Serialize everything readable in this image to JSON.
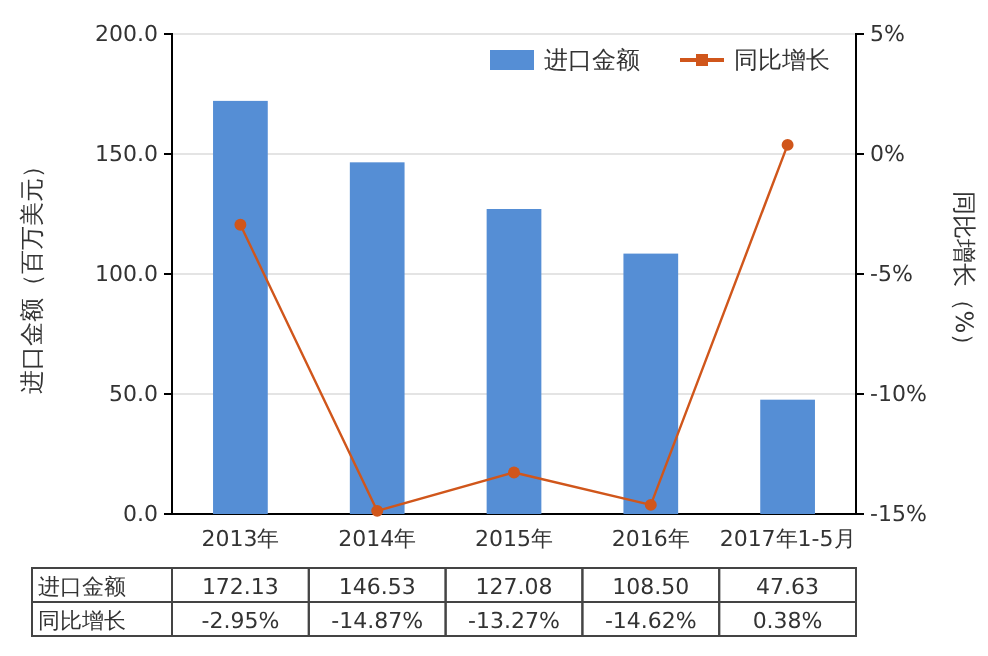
{
  "chart_data": {
    "type": "bar",
    "categories": [
      "2013年",
      "2014年",
      "2015年",
      "2016年",
      "2017年1-5月"
    ],
    "ylabel": "进口金额（百万美元）",
    "y2label": "同比增长（%）",
    "ylim": [
      0,
      200
    ],
    "yticks": [
      {
        "value": 0,
        "label": "0.0"
      },
      {
        "value": 50,
        "label": "50.0"
      },
      {
        "value": 100,
        "label": "100.0"
      },
      {
        "value": 150,
        "label": "150.0"
      },
      {
        "value": 200,
        "label": "200.0"
      }
    ],
    "y2lim": [
      -15,
      5
    ],
    "y2ticks": [
      {
        "value": -15,
        "label": "-15%"
      },
      {
        "value": -10,
        "label": "-10%"
      },
      {
        "value": -5,
        "label": "-5%"
      },
      {
        "value": 0,
        "label": "0%"
      },
      {
        "value": 5,
        "label": "5%"
      }
    ],
    "grid": "y",
    "legend": "top right",
    "marker": "circle",
    "series": [
      {
        "name": "进口金额",
        "color": "#558ed5",
        "values": [
          172.13,
          146.53,
          127.08,
          108.5,
          47.63
        ],
        "value_labels": [
          "172.13",
          "146.53",
          "127.08",
          "108.50",
          "47.63"
        ]
      },
      {
        "name": "同比增长",
        "type": "line",
        "axis": "y2",
        "color": "#d0561b",
        "values": [
          -2.95,
          -14.87,
          -13.27,
          -14.62,
          0.38
        ],
        "value_labels": [
          "-2.95%",
          "-14.87%",
          "-13.27%",
          "-14.62%",
          "0.38%"
        ]
      }
    ]
  }
}
